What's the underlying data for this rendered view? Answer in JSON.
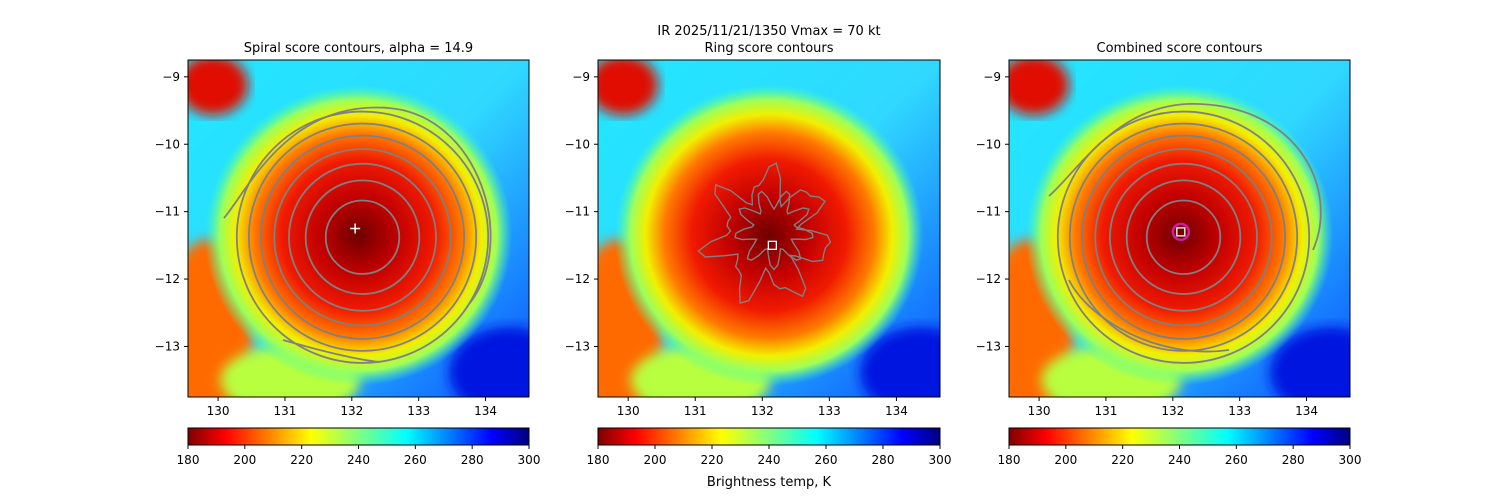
{
  "suptitle_line1": "IR  2025/11/21/1350    Vmax = 70 kt",
  "colors": {
    "contour": "#808080",
    "ring_contour": "#7a7a7a",
    "marker": "#ffffff",
    "combined_circle": "#cc1fa0"
  },
  "colorbar_label": "Brightness temp, K",
  "chart_data": [
    {
      "type": "heatmap",
      "title": "Spiral score contours, alpha = 14.9",
      "xlim": [
        129.55,
        134.65
      ],
      "ylim": [
        -13.75,
        -8.75
      ],
      "xticks": [
        130,
        131,
        132,
        133,
        134
      ],
      "yticks": [
        -9,
        -10,
        -11,
        -12,
        -13
      ],
      "xtick_labels": [
        "130",
        "131",
        "132",
        "133",
        "134"
      ],
      "ytick_labels": [
        "−9",
        "−10",
        "−11",
        "−12",
        "−13"
      ],
      "colormap": "jet_r",
      "clim": [
        180,
        300
      ],
      "colorbar_ticks": [
        "180",
        "200",
        "220",
        "240",
        "260",
        "280",
        "300"
      ],
      "storm_center": [
        132.1,
        -11.35
      ],
      "contours": "concentric spiral score contours",
      "marker": {
        "shape": "plus",
        "x": 132.05,
        "y": -11.25
      }
    },
    {
      "type": "heatmap",
      "title": "Ring score contours",
      "xlim": [
        129.55,
        134.65
      ],
      "ylim": [
        -13.75,
        -8.75
      ],
      "xticks": [
        130,
        131,
        132,
        133,
        134
      ],
      "yticks": [
        -9,
        -10,
        -11,
        -12,
        -13
      ],
      "xtick_labels": [
        "130",
        "131",
        "132",
        "133",
        "134"
      ],
      "ytick_labels": [
        "−9",
        "−10",
        "−11",
        "−12",
        "−13"
      ],
      "colormap": "jet_r",
      "clim": [
        180,
        300
      ],
      "colorbar_ticks": [
        "180",
        "200",
        "220",
        "240",
        "260",
        "280",
        "300"
      ],
      "storm_center": [
        132.1,
        -11.35
      ],
      "contours": "noisy ring score contours",
      "marker": {
        "shape": "square",
        "x": 132.15,
        "y": -11.5
      }
    },
    {
      "type": "heatmap",
      "title": "Combined score contours",
      "xlim": [
        129.55,
        134.65
      ],
      "ylim": [
        -13.75,
        -8.75
      ],
      "xticks": [
        130,
        131,
        132,
        133,
        134
      ],
      "yticks": [
        -9,
        -10,
        -11,
        -12,
        -13
      ],
      "xtick_labels": [
        "130",
        "131",
        "132",
        "133",
        "134"
      ],
      "ytick_labels": [
        "−9",
        "−10",
        "−11",
        "−12",
        "−13"
      ],
      "colormap": "jet_r",
      "clim": [
        180,
        300
      ],
      "colorbar_ticks": [
        "180",
        "200",
        "220",
        "240",
        "260",
        "280",
        "300"
      ],
      "storm_center": [
        132.1,
        -11.35
      ],
      "contours": "concentric combined score contours",
      "marker": {
        "shape": "square-circle",
        "x": 132.12,
        "y": -11.3
      }
    }
  ]
}
